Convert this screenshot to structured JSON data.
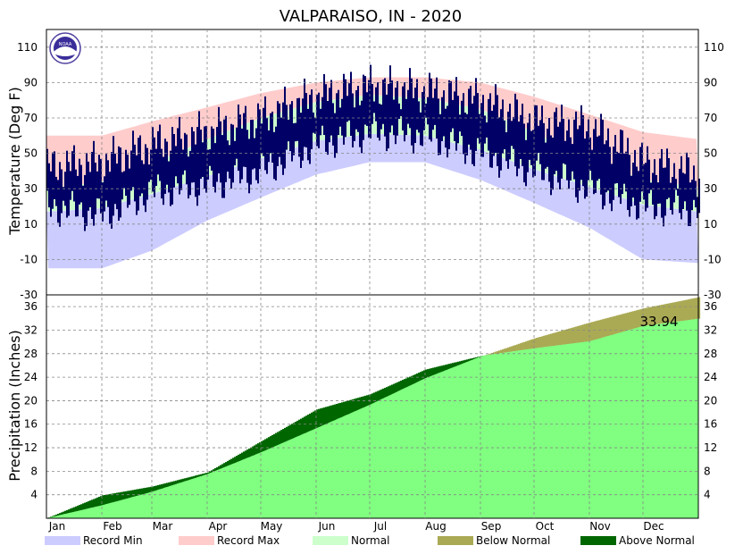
{
  "title": "VALPARAISO, IN - 2020",
  "colors": {
    "record_min": "#ccccff",
    "record_max": "#ffcccc",
    "normal": "#ccffcc",
    "observed_temp": "#000066",
    "below_normal": "#aaaa55",
    "above_normal": "#006600",
    "normal_precip": "#80ff80",
    "grid": "#888888",
    "noaa_logo": "#5040a0"
  },
  "months": [
    "Jan",
    "Feb",
    "Mar",
    "Apr",
    "May",
    "Jun",
    "Jul",
    "Aug",
    "Sep",
    "Oct",
    "Nov",
    "Dec"
  ],
  "legend": [
    {
      "label": "Record Min",
      "color_key": "record_min"
    },
    {
      "label": "Record Max",
      "color_key": "record_max"
    },
    {
      "label": "Normal",
      "color_key": "normal"
    },
    {
      "label": "Below Normal",
      "color_key": "below_normal"
    },
    {
      "label": "Above Normal",
      "color_key": "above_normal"
    }
  ],
  "logo_text": "NOAA",
  "chart_data": [
    {
      "type": "area",
      "name": "temperature",
      "ylabel": "Temperature (Deg F)",
      "ylim": [
        -30,
        120
      ],
      "yticks": [
        110,
        90,
        70,
        50,
        30,
        10,
        -10,
        -30
      ],
      "grid": true,
      "x_days": [
        1,
        32,
        60,
        91,
        121,
        152,
        182,
        213,
        244,
        274,
        305,
        335,
        366
      ],
      "record_max": [
        60,
        60,
        68,
        76,
        84,
        90,
        93,
        93,
        90,
        82,
        72,
        62,
        58
      ],
      "normal_high": [
        30,
        34,
        44,
        58,
        70,
        79,
        83,
        81,
        75,
        62,
        47,
        35,
        31
      ],
      "normal_low": [
        17,
        19,
        27,
        37,
        47,
        57,
        61,
        60,
        52,
        41,
        31,
        21,
        17
      ],
      "record_min": [
        -15,
        -15,
        -5,
        12,
        25,
        38,
        45,
        45,
        35,
        22,
        8,
        -10,
        -12
      ],
      "observed_high": [
        42,
        45,
        55,
        62,
        70,
        82,
        88,
        85,
        80,
        68,
        65,
        45,
        38
      ],
      "observed_low": [
        20,
        15,
        28,
        32,
        40,
        55,
        62,
        60,
        50,
        40,
        30,
        20,
        18
      ]
    },
    {
      "type": "area",
      "name": "precipitation",
      "ylabel": "Precipitation (Inches)",
      "ylim": [
        0,
        38
      ],
      "yticks": [
        36,
        32,
        28,
        24,
        20,
        16,
        12,
        8,
        4
      ],
      "grid": true,
      "x_days": [
        1,
        32,
        60,
        91,
        121,
        152,
        182,
        213,
        244,
        274,
        305,
        335,
        366
      ],
      "normal_cumulative": [
        0,
        2.2,
        4.5,
        7.5,
        11.2,
        15.3,
        19.3,
        23.8,
        27.5,
        30.6,
        33.3,
        35.7,
        37.6
      ],
      "observed_cumulative": [
        0,
        3.9,
        5.4,
        7.8,
        13.1,
        18.5,
        21.1,
        25.3,
        27.6,
        28.9,
        30.1,
        32.7,
        33.94
      ],
      "annotation": "33.94"
    }
  ]
}
